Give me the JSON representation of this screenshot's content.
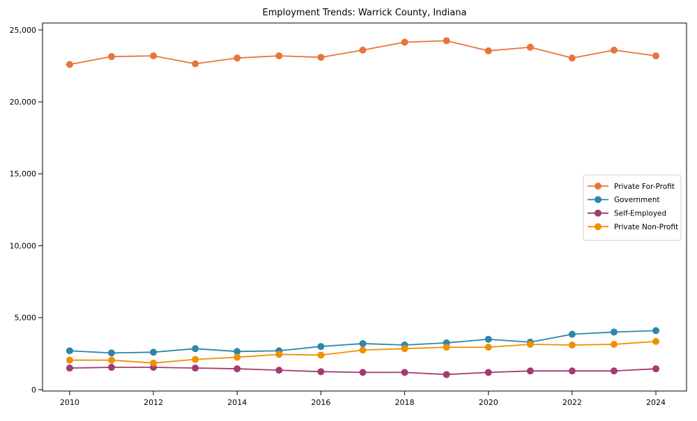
{
  "chart_data": {
    "type": "line",
    "title": "Employment Trends: Warrick County, Indiana",
    "xlabel": "",
    "ylabel": "",
    "x": [
      2010,
      2011,
      2012,
      2013,
      2014,
      2015,
      2016,
      2017,
      2018,
      2019,
      2020,
      2021,
      2022,
      2023,
      2024
    ],
    "series": [
      {
        "name": "Private For-Profit",
        "color": "#E8743B",
        "values": [
          22600,
          23150,
          23200,
          22650,
          23050,
          23200,
          23100,
          23600,
          24150,
          24250,
          23550,
          23800,
          23050,
          23600,
          23200
        ]
      },
      {
        "name": "Government",
        "color": "#2E86AB",
        "values": [
          2700,
          2550,
          2600,
          2850,
          2650,
          2700,
          3000,
          3200,
          3100,
          3250,
          3500,
          3300,
          3850,
          4000,
          4100
        ]
      },
      {
        "name": "Self-Employed",
        "color": "#A23B72",
        "values": [
          1500,
          1550,
          1550,
          1500,
          1450,
          1350,
          1250,
          1200,
          1200,
          1050,
          1200,
          1300,
          1300,
          1300,
          1450
        ]
      },
      {
        "name": "Private Non-Profit",
        "color": "#F18F01",
        "values": [
          2050,
          2050,
          1850,
          2100,
          2250,
          2450,
          2400,
          2750,
          2850,
          2950,
          2950,
          3150,
          3100,
          3150,
          3350
        ]
      }
    ],
    "xticks": [
      2010,
      2012,
      2014,
      2016,
      2018,
      2020,
      2022,
      2024
    ],
    "yticks": [
      0,
      5000,
      10000,
      15000,
      20000,
      25000
    ],
    "ytick_labels": [
      "0",
      "5,000",
      "10,000",
      "15,000",
      "20,000",
      "25,000"
    ],
    "ylim": [
      0,
      25000
    ],
    "grid": false,
    "legend_position": "right",
    "marker": "circle",
    "axis_color": "#000000",
    "legend_border_color": "#cccccc"
  }
}
